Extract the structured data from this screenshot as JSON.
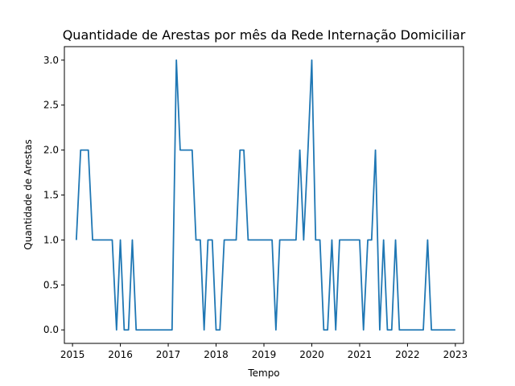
{
  "chart_data": {
    "type": "line",
    "title": "Quantidade de Arestas por mês da Rede Internação Domiciliar",
    "xlabel": "Tempo",
    "ylabel": "Quantidade de Arestas",
    "x_ticks": [
      "2015",
      "2016",
      "2017",
      "2018",
      "2019",
      "2020",
      "2021",
      "2022",
      "2023"
    ],
    "y_ticks": [
      "0.0",
      "0.5",
      "1.0",
      "1.5",
      "2.0",
      "2.5",
      "3.0"
    ],
    "xlim": [
      2014.83,
      2023.17
    ],
    "ylim": [
      -0.15,
      3.15
    ],
    "grid": false,
    "legend": "none",
    "series": [
      {
        "color": "#1f77b4",
        "x": [
          2015.08,
          2015.17,
          2015.25,
          2015.33,
          2015.42,
          2015.5,
          2015.58,
          2015.67,
          2015.75,
          2015.83,
          2015.92,
          2016.0,
          2016.08,
          2016.17,
          2016.25,
          2016.33,
          2016.42,
          2016.5,
          2016.58,
          2016.67,
          2016.75,
          2016.83,
          2016.92,
          2017.0,
          2017.08,
          2017.17,
          2017.25,
          2017.33,
          2017.42,
          2017.5,
          2017.58,
          2017.67,
          2017.75,
          2017.83,
          2017.92,
          2018.0,
          2018.08,
          2018.17,
          2018.25,
          2018.33,
          2018.42,
          2018.5,
          2018.58,
          2018.67,
          2018.75,
          2018.83,
          2018.92,
          2019.0,
          2019.08,
          2019.17,
          2019.25,
          2019.33,
          2019.42,
          2019.5,
          2019.58,
          2019.67,
          2019.75,
          2019.83,
          2019.92,
          2020.0,
          2020.08,
          2020.17,
          2020.25,
          2020.33,
          2020.42,
          2020.5,
          2020.58,
          2020.67,
          2020.75,
          2020.83,
          2020.92,
          2021.0,
          2021.08,
          2021.17,
          2021.25,
          2021.33,
          2021.42,
          2021.5,
          2021.58,
          2021.67,
          2021.75,
          2021.83,
          2021.92,
          2022.0,
          2022.08,
          2022.17,
          2022.25,
          2022.33,
          2022.42,
          2022.5,
          2022.58,
          2022.67,
          2022.75,
          2022.83,
          2022.92,
          2023.0
        ],
        "values": [
          1,
          2,
          2,
          2,
          1,
          1,
          1,
          1,
          1,
          1,
          0,
          1,
          0,
          0,
          1,
          0,
          0,
          0,
          0,
          0,
          0,
          0,
          0,
          0,
          0,
          3,
          2,
          2,
          2,
          2,
          1,
          1,
          0,
          1,
          1,
          0,
          0,
          1,
          1,
          1,
          1,
          2,
          2,
          1,
          1,
          1,
          1,
          1,
          1,
          1,
          0,
          1,
          1,
          1,
          1,
          1,
          2,
          1,
          2,
          3,
          1,
          1,
          0,
          0,
          1,
          0,
          1,
          1,
          1,
          1,
          1,
          1,
          0,
          1,
          1,
          2,
          0,
          1,
          0,
          0,
          1,
          0,
          0,
          0,
          0,
          0,
          0,
          0,
          1,
          0,
          0,
          0,
          0,
          0,
          0,
          0
        ]
      }
    ]
  }
}
